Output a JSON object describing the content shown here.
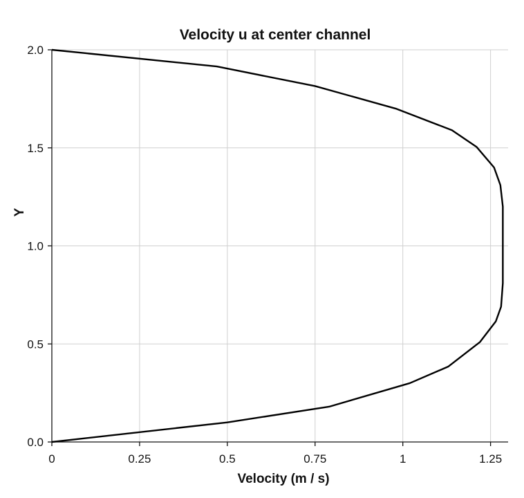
{
  "chart_data": {
    "type": "line",
    "title": "Velocity u at center channel",
    "xlabel": "Velocity (m / s)",
    "ylabel": "Y",
    "xlim": [
      0,
      1.3
    ],
    "ylim": [
      0,
      2.0
    ],
    "x_ticks": [
      0,
      0.25,
      0.5,
      0.75,
      1,
      1.25
    ],
    "x_tick_labels": [
      "0",
      "0.25",
      "0.5",
      "0.75",
      "1",
      "1.25"
    ],
    "y_ticks": [
      0,
      0.5,
      1.0,
      1.5,
      2.0
    ],
    "y_tick_labels": [
      "0.0",
      "0.5",
      "1.0",
      "1.5",
      "2.0"
    ],
    "grid": true,
    "legend": "none",
    "series": [
      {
        "color": "#000000",
        "points": [
          [
            0.0,
            0.0
          ],
          [
            0.5,
            0.1
          ],
          [
            0.79,
            0.18
          ],
          [
            1.02,
            0.3
          ],
          [
            1.13,
            0.385
          ],
          [
            1.22,
            0.51
          ],
          [
            1.265,
            0.615
          ],
          [
            1.28,
            0.69
          ],
          [
            1.285,
            0.81
          ],
          [
            1.285,
            1.0
          ],
          [
            1.285,
            1.2
          ],
          [
            1.278,
            1.31
          ],
          [
            1.26,
            1.4
          ],
          [
            1.21,
            1.505
          ],
          [
            1.14,
            1.59
          ],
          [
            0.98,
            1.7
          ],
          [
            0.75,
            1.815
          ],
          [
            0.47,
            1.915
          ],
          [
            0.0,
            2.0
          ]
        ]
      }
    ]
  }
}
